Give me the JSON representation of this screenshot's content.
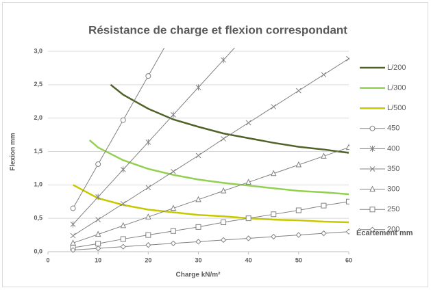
{
  "chart_data": {
    "type": "line",
    "title": "Résistance de charge et flexion correspondant",
    "x_label": "Charge kN/m²",
    "y_label": "Flexion mm",
    "legend_title": "Écartement mm",
    "legend": "right",
    "grid": true,
    "xlim": [
      0,
      60
    ],
    "xticks": [
      0,
      10,
      20,
      30,
      40,
      50,
      60
    ],
    "ylim": [
      0,
      3
    ],
    "yticks": [
      {
        "value": 0,
        "label": "0,0"
      },
      {
        "value": 0.5,
        "label": "0,5"
      },
      {
        "value": 1,
        "label": "1,0"
      },
      {
        "value": 1.5,
        "label": "1,5"
      },
      {
        "value": 2,
        "label": "2,0"
      },
      {
        "value": 2.5,
        "label": "2,5"
      },
      {
        "value": 3,
        "label": "3,0"
      }
    ],
    "series": [
      {
        "name": "L/200",
        "color": "#4f6228",
        "width": 2.5,
        "marker": "none",
        "x": [
          12.5,
          15,
          20,
          25,
          30,
          35,
          40,
          45,
          50,
          55,
          60
        ],
        "values": [
          2.5,
          2.35,
          2.14,
          1.98,
          1.87,
          1.77,
          1.7,
          1.63,
          1.57,
          1.53,
          1.48
        ]
      },
      {
        "name": "L/300",
        "color": "#92d050",
        "width": 2.5,
        "marker": "none",
        "x": [
          8.3,
          10,
          15,
          20,
          25,
          30,
          35,
          40,
          45,
          50,
          55,
          60
        ],
        "values": [
          1.67,
          1.56,
          1.37,
          1.24,
          1.15,
          1.08,
          1.03,
          0.99,
          0.95,
          0.91,
          0.89,
          0.86
        ]
      },
      {
        "name": "L/500",
        "color": "#c8c800",
        "width": 2.5,
        "marker": "none",
        "x": [
          5,
          10,
          15,
          20,
          25,
          30,
          35,
          40,
          45,
          50,
          55,
          60
        ],
        "values": [
          1.0,
          0.8,
          0.7,
          0.63,
          0.59,
          0.55,
          0.53,
          0.5,
          0.48,
          0.47,
          0.45,
          0.44
        ]
      },
      {
        "name": "450",
        "color": "#808080",
        "width": 1,
        "marker": "circle",
        "x": [
          5,
          10,
          15,
          20,
          25,
          30,
          35,
          40,
          45,
          50,
          55,
          60
        ],
        "values": [
          0.65,
          1.31,
          1.97,
          2.63,
          3.29,
          null,
          null,
          null,
          null,
          null,
          null,
          null
        ]
      },
      {
        "name": "400",
        "color": "#808080",
        "width": 1,
        "marker": "star",
        "x": [
          5,
          10,
          15,
          20,
          25,
          30,
          35,
          40,
          45,
          50,
          55,
          60
        ],
        "values": [
          0.41,
          0.82,
          1.23,
          1.64,
          2.05,
          2.46,
          2.87,
          3.28,
          null,
          null,
          null,
          null
        ]
      },
      {
        "name": "350",
        "color": "#808080",
        "width": 1,
        "marker": "cross",
        "x": [
          5,
          10,
          15,
          20,
          25,
          30,
          35,
          40,
          45,
          50,
          55,
          60
        ],
        "values": [
          0.24,
          0.48,
          0.72,
          0.96,
          1.2,
          1.44,
          1.69,
          1.93,
          2.17,
          2.41,
          2.65,
          2.89
        ]
      },
      {
        "name": "300",
        "color": "#808080",
        "width": 1,
        "marker": "triangle",
        "x": [
          5,
          10,
          15,
          20,
          25,
          30,
          35,
          40,
          45,
          50,
          55,
          60
        ],
        "values": [
          0.13,
          0.26,
          0.39,
          0.52,
          0.65,
          0.78,
          0.91,
          1.04,
          1.17,
          1.3,
          1.43,
          1.56
        ]
      },
      {
        "name": "250",
        "color": "#808080",
        "width": 1,
        "marker": "square",
        "x": [
          5,
          10,
          15,
          20,
          25,
          30,
          35,
          40,
          45,
          50,
          55,
          60
        ],
        "values": [
          0.06,
          0.12,
          0.19,
          0.25,
          0.31,
          0.37,
          0.44,
          0.5,
          0.56,
          0.62,
          0.69,
          0.75
        ]
      },
      {
        "name": "200",
        "color": "#808080",
        "width": 1,
        "marker": "diamond",
        "x": [
          5,
          10,
          15,
          20,
          25,
          30,
          35,
          40,
          45,
          50,
          55,
          60
        ],
        "values": [
          0.025,
          0.05,
          0.075,
          0.1,
          0.125,
          0.15,
          0.175,
          0.2,
          0.225,
          0.25,
          0.275,
          0.3
        ]
      }
    ]
  }
}
